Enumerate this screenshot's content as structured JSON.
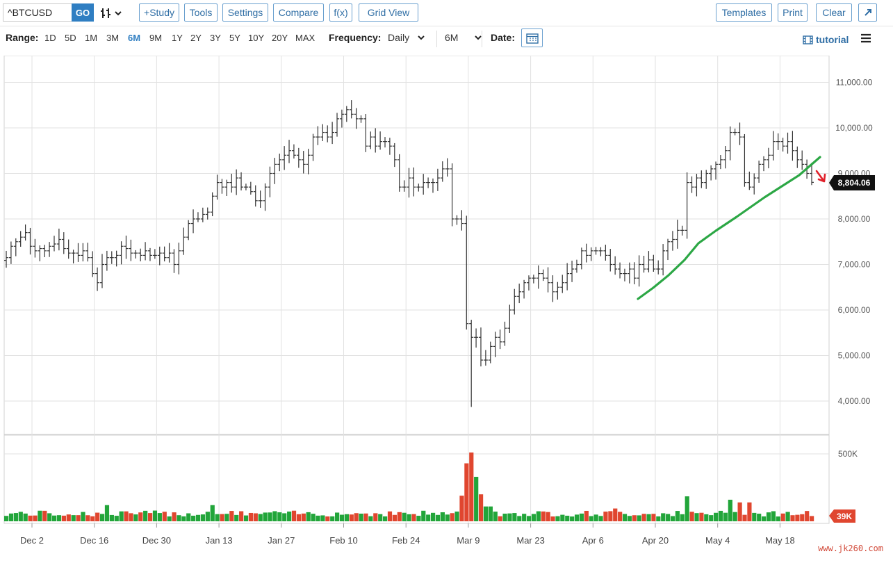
{
  "toolbar": {
    "symbol": "^BTCUSD",
    "go_label": "GO",
    "study_label": "+Study",
    "tools_label": "Tools",
    "settings_label": "Settings",
    "compare_label": "Compare",
    "fx_label": "f(x)",
    "gridview_label": "Grid View",
    "templates_label": "Templates",
    "print_label": "Print",
    "clear_label": "Clear"
  },
  "controls": {
    "range_label": "Range:",
    "ranges": [
      "1D",
      "5D",
      "1M",
      "3M",
      "6M",
      "9M",
      "1Y",
      "2Y",
      "3Y",
      "5Y",
      "10Y",
      "20Y",
      "MAX"
    ],
    "active_range": "6M",
    "frequency_label": "Frequency:",
    "frequency_value": "Daily",
    "period_value": "6M",
    "date_label": "Date:",
    "tutorial_label": "tutorial"
  },
  "chart_data": {
    "type": "ohlc",
    "symbol": "^BTCUSD",
    "price_axis": {
      "ticks": [
        "11,000.00",
        "10,000.00",
        "9,000.00",
        "8,000.00",
        "7,000.00",
        "6,000.00",
        "5,000.00",
        "4,000.00"
      ],
      "tick_values": [
        11000,
        10000,
        9000,
        8000,
        7000,
        6000,
        5000,
        4000
      ],
      "range": [
        3700,
        11600
      ]
    },
    "volume_axis": {
      "ticks": [
        "500K"
      ],
      "tick_values": [
        500000
      ],
      "range": [
        0,
        610000
      ]
    },
    "x_ticks": [
      "Dec 2",
      "Dec 16",
      "Dec 30",
      "Jan 13",
      "Jan 27",
      "Feb 10",
      "Feb 24",
      "Mar 9",
      "Mar 23",
      "Apr 6",
      "Apr 20",
      "May 4",
      "May 18"
    ],
    "last_price": "8,804.06",
    "last_volume": "39K",
    "colors": {
      "up_volume": "#22a53a",
      "down_volume": "#e0462f",
      "trendline": "#2ca745",
      "arrow": "#e0202a",
      "bars": "#333333"
    },
    "closes": [
      7150,
      7400,
      7500,
      7600,
      7700,
      7400,
      7300,
      7350,
      7300,
      7400,
      7450,
      7550,
      7350,
      7250,
      7250,
      7200,
      7300,
      7150,
      6800,
      6600,
      7000,
      7150,
      7150,
      7200,
      7400,
      7350,
      7250,
      7250,
      7200,
      7300,
      7200,
      7200,
      7250,
      7150,
      7250,
      7000,
      7300,
      7600,
      7900,
      8000,
      8000,
      8100,
      8150,
      8500,
      8800,
      8700,
      8800,
      8700,
      8900,
      8700,
      8700,
      8600,
      8400,
      8400,
      8700,
      9000,
      9200,
      9300,
      9400,
      9500,
      9400,
      9300,
      9200,
      9400,
      9800,
      9800,
      9900,
      9800,
      9900,
      10200,
      10300,
      10400,
      10300,
      10200,
      10200,
      9600,
      9800,
      9600,
      9700,
      9700,
      9600,
      9300,
      8700,
      8700,
      8900,
      8700,
      8700,
      8800,
      8800,
      8800,
      8900,
      9100,
      9100,
      8000,
      8000,
      7900,
      5700,
      5400,
      5400,
      4900,
      4900,
      5200,
      5400,
      5300,
      5600,
      6000,
      6300,
      6400,
      6600,
      6700,
      6700,
      6800,
      6700,
      6600,
      6400,
      6500,
      6600,
      6800,
      6900,
      7000,
      7300,
      7200,
      7300,
      7300,
      7300,
      7200,
      7000,
      6900,
      6800,
      6800,
      6900,
      6700,
      7000,
      6900,
      7100,
      6900,
      6900,
      7300,
      7500,
      7550,
      7750,
      7750,
      8800,
      8700,
      8900,
      8800,
      9000,
      9100,
      9200,
      9300,
      9500,
      9900,
      9900,
      9800,
      8800,
      8700,
      8900,
      9200,
      9300,
      9400,
      9700,
      9700,
      9600,
      9700,
      9500,
      9300,
      9200,
      9000,
      8804
    ]
  }
}
